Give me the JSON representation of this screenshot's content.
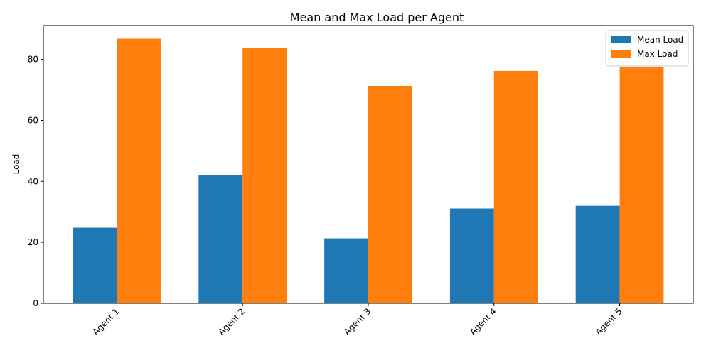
{
  "chart_data": {
    "type": "bar",
    "title": "Mean and Max Load per Agent",
    "xlabel": "",
    "ylabel": "Load",
    "categories": [
      "Agent 1",
      "Agent 2",
      "Agent 3",
      "Agent 4",
      "Agent 5"
    ],
    "series": [
      {
        "name": "Mean Load",
        "color": "#1f77b4",
        "values": [
          24.8,
          42.1,
          21.3,
          31.1,
          32.0
        ]
      },
      {
        "name": "Max Load",
        "color": "#ff7f0e",
        "values": [
          86.8,
          83.7,
          71.3,
          76.2,
          77.4
        ]
      }
    ],
    "ylim": [
      0,
      91.1
    ],
    "yticks": [
      0,
      20,
      40,
      60,
      80
    ],
    "grid": false,
    "legend_position": "top-right",
    "xtick_rotation_deg": 45
  }
}
